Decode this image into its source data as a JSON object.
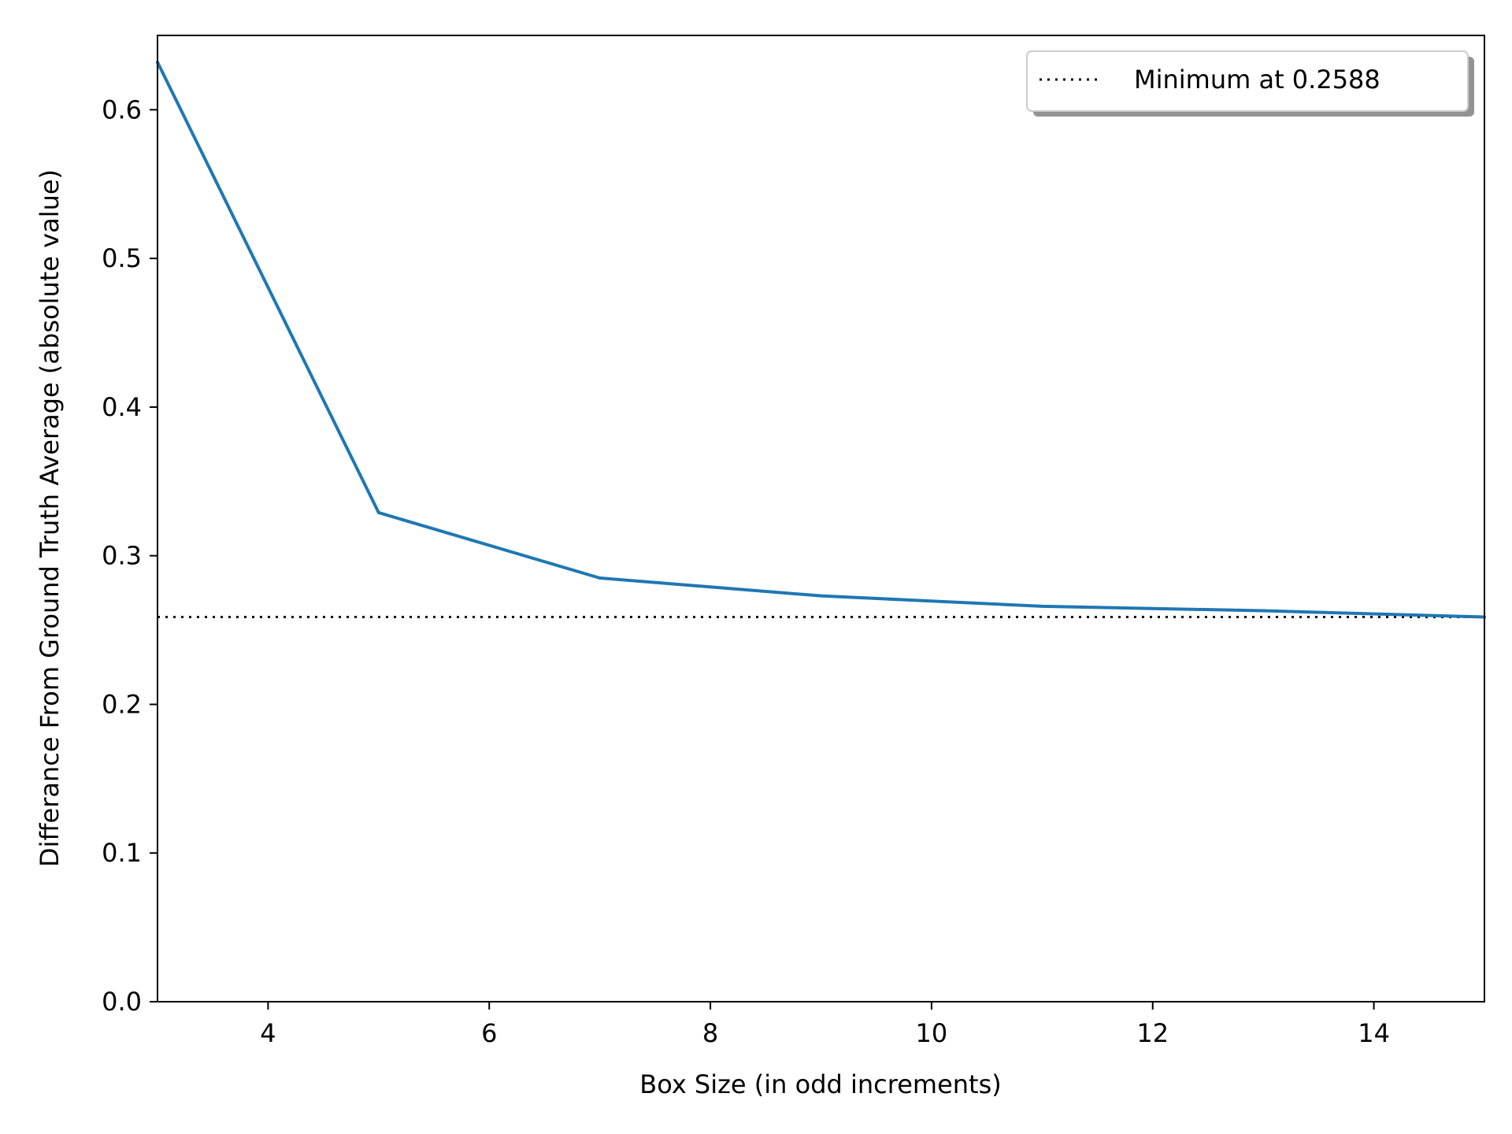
{
  "chart_data": {
    "type": "line",
    "title": "",
    "xlabel": "Box Size (in odd increments)",
    "ylabel": "Differance From Ground Truth Average (absolute value)",
    "xlim": [
      3,
      15
    ],
    "ylim": [
      0.0,
      0.65
    ],
    "xticks": [
      4,
      6,
      8,
      10,
      12,
      14
    ],
    "yticks": [
      0.0,
      0.1,
      0.2,
      0.3,
      0.4,
      0.5,
      0.6
    ],
    "xtick_labels": [
      "4",
      "6",
      "8",
      "10",
      "12",
      "14"
    ],
    "ytick_labels": [
      "0.0",
      "0.1",
      "0.2",
      "0.3",
      "0.4",
      "0.5",
      "0.6"
    ],
    "grid": false,
    "legend_position": "top-right",
    "series": [
      {
        "color": "#1f77b4",
        "x": [
          3,
          5,
          7,
          9,
          11,
          13,
          15
        ],
        "y": [
          0.632,
          0.329,
          0.285,
          0.273,
          0.266,
          0.263,
          0.2588
        ]
      }
    ],
    "reference_lines": [
      {
        "orientation": "horizontal",
        "y": 0.2588,
        "style": "dotted",
        "color": "#000000",
        "label": "Minimum at 0.2588"
      }
    ]
  }
}
